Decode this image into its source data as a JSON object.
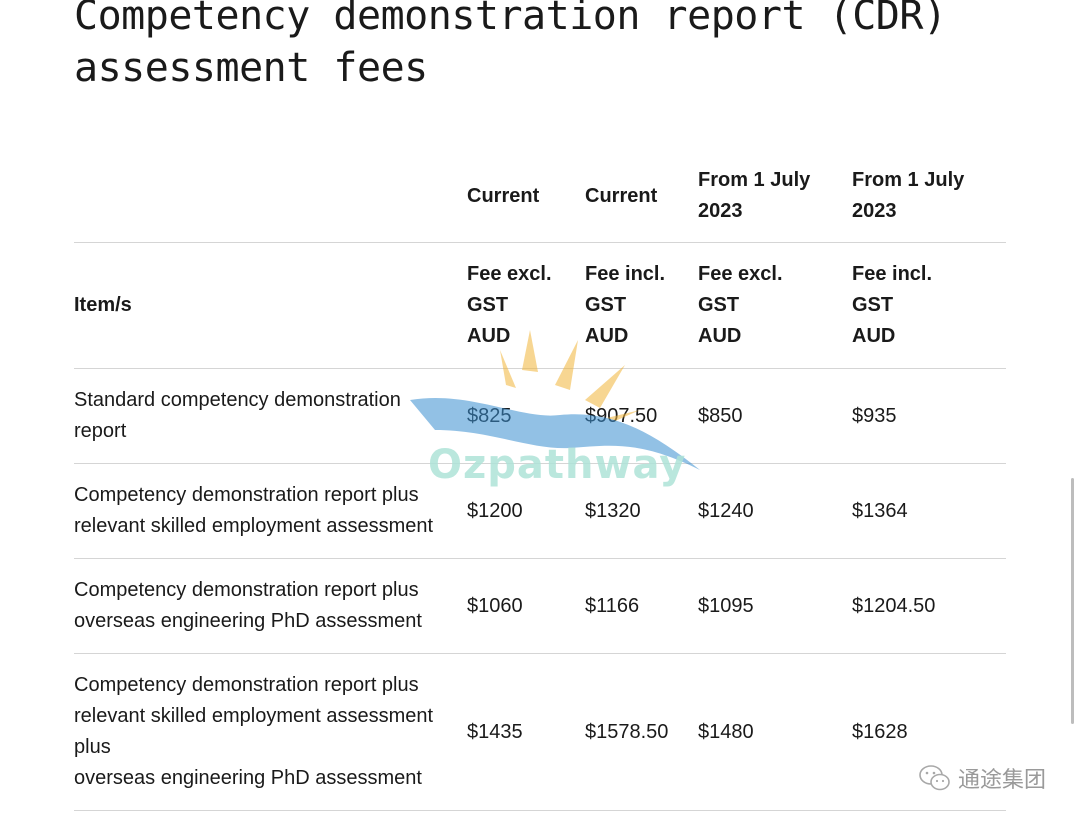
{
  "page": {
    "title_line1": "Competency demonstration report (CDR)",
    "title_line2": "assessment fees"
  },
  "table": {
    "period_headers": [
      {
        "line1": "Current",
        "line2": ""
      },
      {
        "line1": "Current",
        "line2": ""
      },
      {
        "line1": "From 1 July",
        "line2": "2023"
      },
      {
        "line1": "From 1 July",
        "line2": "2023"
      }
    ],
    "item_header": "Item/s",
    "unit_headers": [
      {
        "line1": "Fee excl.",
        "line2": "GST",
        "line3": "AUD"
      },
      {
        "line1": "Fee incl.",
        "line2": "GST",
        "line3": "AUD"
      },
      {
        "line1": "Fee excl.",
        "line2": "GST",
        "line3": "AUD"
      },
      {
        "line1": "Fee incl.",
        "line2": "GST",
        "line3": "AUD"
      }
    ],
    "rows": [
      {
        "item_lines": [
          "Standard competency demonstration",
          "report"
        ],
        "values": [
          "$825",
          "$907.50",
          "$850",
          "$935"
        ]
      },
      {
        "item_lines": [
          "Competency demonstration report plus",
          "relevant skilled employment assessment"
        ],
        "values": [
          "$1200",
          "$1320",
          "$1240",
          "$1364"
        ]
      },
      {
        "item_lines": [
          "Competency demonstration report plus",
          "overseas engineering PhD assessment"
        ],
        "values": [
          "$1060",
          "$1166",
          "$1095",
          "$1204.50"
        ]
      },
      {
        "item_lines": [
          "Competency demonstration report plus",
          "relevant skilled employment assessment",
          "plus",
          "overseas engineering PhD assessment"
        ],
        "values": [
          "$1435",
          "$1578.50",
          "$1480",
          "$1628"
        ]
      }
    ]
  },
  "watermark": {
    "text": "Ozpathway"
  },
  "brand": {
    "icon": "wechat-icon",
    "label": "通途集团"
  },
  "colors": {
    "text": "#1a1a1a",
    "divider": "#d5d5d5",
    "watermark_blue": "#3a8fd1",
    "watermark_sun": "#f2b53a",
    "watermark_text": "#aee3d8"
  }
}
